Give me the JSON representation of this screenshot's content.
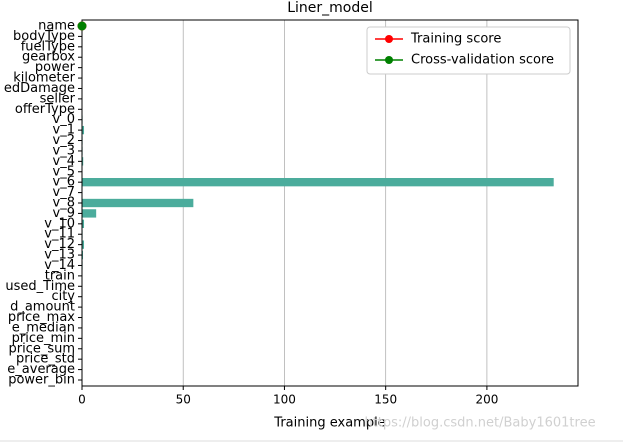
{
  "chart_data": {
    "type": "barh",
    "title": "Liner_model",
    "x_label": "Training example",
    "categories": [
      "name",
      "bodyType",
      "fuelType",
      "gearbox",
      "power",
      "kilometer",
      "edDamage",
      "seller",
      "offerType",
      "v_0",
      "v_1",
      "v_2",
      "v_3",
      "v_4",
      "v_5",
      "v_6",
      "v_7",
      "v_8",
      "v_9",
      "v_10",
      "v_11",
      "v_12",
      "v_13",
      "v_14",
      "train",
      "used_Time",
      "city",
      "d_amount",
      "price_max",
      "e_median",
      "price_min",
      "price_sum",
      "price_std",
      "e_average",
      "power_bin"
    ],
    "values": [
      0,
      0,
      0,
      0,
      0,
      0,
      0,
      0,
      0,
      0.3,
      1,
      0.3,
      0.3,
      0.6,
      0.2,
      233,
      0.2,
      55,
      7,
      1,
      0.3,
      1,
      0.5,
      0.3,
      0,
      0,
      0,
      0,
      0,
      0,
      0,
      0,
      0,
      0,
      0
    ],
    "color": "#4bac9c",
    "points": [
      {
        "name": "Training score",
        "color": "#ff0000",
        "x": [
          0
        ],
        "y": [
          "name"
        ]
      },
      {
        "name": "Cross-validation score",
        "color": "#008000",
        "x": [
          0
        ],
        "y": [
          "name"
        ]
      }
    ],
    "xlim": [
      0,
      245
    ],
    "xticks": [
      0,
      50,
      100,
      150,
      200
    ],
    "grid": true,
    "legend": "upper right",
    "watermark": "https://blog.csdn.net/Baby1601tree"
  }
}
